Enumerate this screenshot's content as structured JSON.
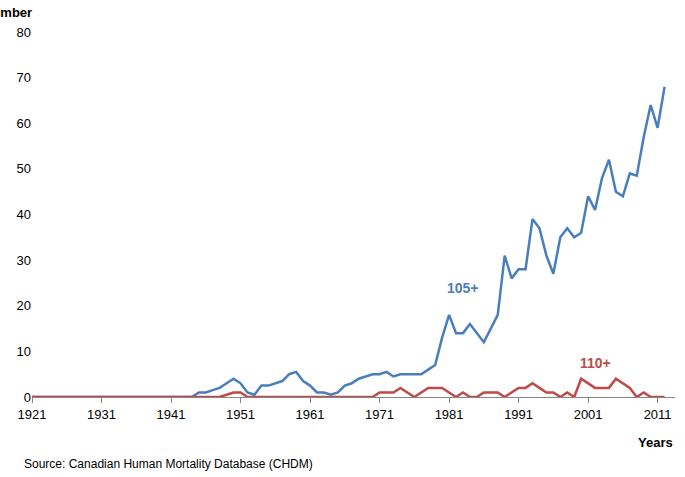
{
  "chart_data": {
    "type": "line",
    "x_label": "Years",
    "y_label": "Number",
    "source": "Source: Canadian Human Mortality Database (CHDM)",
    "x": [
      1921,
      1922,
      1923,
      1924,
      1925,
      1926,
      1927,
      1928,
      1929,
      1930,
      1931,
      1932,
      1933,
      1934,
      1935,
      1936,
      1937,
      1938,
      1939,
      1940,
      1941,
      1942,
      1943,
      1944,
      1945,
      1946,
      1947,
      1948,
      1949,
      1950,
      1951,
      1952,
      1953,
      1954,
      1955,
      1956,
      1957,
      1958,
      1959,
      1960,
      1961,
      1962,
      1963,
      1964,
      1965,
      1966,
      1967,
      1968,
      1969,
      1970,
      1971,
      1972,
      1973,
      1974,
      1975,
      1976,
      1977,
      1978,
      1979,
      1980,
      1981,
      1982,
      1983,
      1984,
      1985,
      1986,
      1987,
      1988,
      1989,
      1990,
      1991,
      1992,
      1993,
      1994,
      1995,
      1996,
      1997,
      1998,
      1999,
      2000,
      2001,
      2002,
      2003,
      2004,
      2005,
      2006,
      2007,
      2008,
      2009,
      2010,
      2011,
      2012
    ],
    "series": [
      {
        "name": "105+",
        "color": "#4a7ebb",
        "values": [
          0,
          0,
          0,
          0,
          0,
          0,
          0,
          0,
          0,
          0,
          0,
          0,
          0,
          0,
          0,
          0,
          0,
          0,
          0,
          0,
          0,
          0,
          0,
          0,
          1,
          1,
          1.5,
          2,
          3,
          4,
          3,
          1,
          0.5,
          2.5,
          2.5,
          3,
          3.5,
          5,
          5.5,
          3.5,
          2.5,
          1,
          1,
          0.5,
          1,
          2.5,
          3,
          4,
          4.5,
          5,
          5,
          5.5,
          4.5,
          5,
          5,
          5,
          5,
          6,
          7,
          13,
          18,
          14,
          14,
          16,
          14,
          12,
          15,
          18,
          31,
          26,
          28,
          28,
          39,
          37,
          31,
          27,
          35,
          37,
          35,
          36,
          44,
          41,
          48,
          52,
          45,
          44,
          49,
          48.5,
          57,
          64,
          59,
          68
        ]
      },
      {
        "name": "110+",
        "color": "#be4b48",
        "values": [
          0,
          0,
          0,
          0,
          0,
          0,
          0,
          0,
          0,
          0,
          0,
          0,
          0,
          0,
          0,
          0,
          0,
          0,
          0,
          0,
          0,
          0,
          0,
          0,
          0,
          0,
          0,
          0,
          0.5,
          1,
          1,
          0,
          0,
          0,
          0,
          0,
          0,
          0,
          0,
          0,
          0,
          0,
          0,
          0,
          0,
          0,
          0,
          0,
          0,
          0,
          1,
          1,
          1,
          2,
          1,
          0,
          1,
          2,
          2,
          2,
          1,
          0,
          1,
          0,
          0,
          1,
          1,
          1,
          0,
          1,
          2,
          2,
          3,
          2,
          1,
          1,
          0,
          1,
          0,
          4,
          3,
          2,
          2,
          2,
          4,
          3,
          2,
          0,
          1,
          0,
          0,
          0
        ]
      }
    ],
    "annotations": [
      {
        "text": "105+",
        "x": 1983,
        "y": 24,
        "color": "#4a7ebb"
      },
      {
        "text": "110+",
        "x": 2002,
        "y": 7.5,
        "color": "#be4b48"
      }
    ],
    "xlim": [
      1921,
      2013.5
    ],
    "xticks": [
      1921,
      1931,
      1941,
      1951,
      1961,
      1971,
      1981,
      1991,
      2001,
      2011
    ],
    "ylim": [
      0,
      80
    ],
    "yticks": [
      0,
      10,
      20,
      30,
      40,
      50,
      60,
      70,
      80
    ],
    "grid": false
  }
}
